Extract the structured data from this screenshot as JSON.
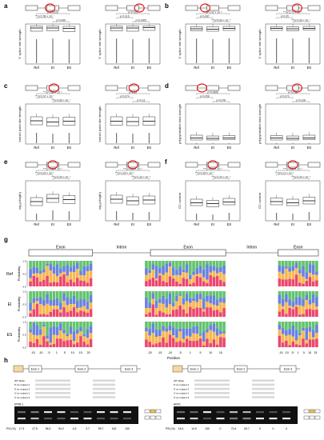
{
  "panel_letters": [
    "a",
    "b",
    "c",
    "d",
    "e",
    "f",
    "g",
    "h"
  ],
  "groups": [
    "Ref",
    "EI",
    "ES"
  ],
  "gene_labels": {
    "exon": "Exon",
    "intron": "Intron"
  },
  "box_panels": [
    {
      "ylabel": "5' splice site strength",
      "pvals": [
        "p=0.0015",
        "***p=2.56 × 10⁻⁴",
        "p=0.499"
      ]
    },
    {
      "ylabel": "5' splice site strength",
      "pvals": [
        "p=0.763",
        "p=0.116",
        "p=0.0005"
      ]
    },
    {
      "ylabel": "3' splice site strength",
      "pvals": [
        "***p=1.02 × 10⁻⁸",
        "p=0.087",
        "***p=5.06 × 10⁻⁵"
      ]
    },
    {
      "ylabel": "3' splice site strength",
      "pvals": [
        "***p=1.71 × 10⁻⁸",
        "p=0.05",
        "***p=1.96 × 10⁻⁴"
      ]
    },
    {
      "ylabel": "branch point site strength",
      "pvals": [
        "***p=7.80 × 10⁻⁸",
        "***p=2.07 × 10⁻⁷",
        "***p=3.08 × 10⁻⁶"
      ]
    },
    {
      "ylabel": "branch point site strength",
      "pvals": [
        "p=0.13",
        "p=0.074",
        "p=0.13"
      ]
    },
    {
      "ylabel": "polypyrimidine tract strength",
      "pvals": [
        "p=0.0085",
        "p=0.058",
        "p=0.078"
      ]
    },
    {
      "ylabel": "polypyrimidine tract strength",
      "pvals": [
        "p=0.018",
        "p=0.073",
        "p=0.106"
      ]
    },
    {
      "ylabel": "log₁₀(length)",
      "pvals": [
        "***p=7.40 × 10⁻⁸",
        "***p=3.02 × 10⁻⁶",
        "***p=2.94 × 10⁻⁶"
      ]
    },
    {
      "ylabel": "log₁₀(length)",
      "pvals": [
        "***p=1.20 × 10⁻⁸",
        "***p=1.00 × 10⁻⁵",
        "***p=1.30 × 10⁻⁵"
      ]
    },
    {
      "ylabel": "GC content",
      "pvals": [
        "***p=4.24 × 10⁻⁸",
        "***p=2.50 × 10⁻⁸",
        "***p=1.04 × 10⁻⁶"
      ]
    },
    {
      "ylabel": "GC content",
      "pvals": [
        "***p=1.60 × 10⁻⁸",
        "***p=2.11 × 10⁻⁸",
        "***p=2.44 × 10⁻⁸"
      ]
    }
  ],
  "logo": {
    "ylabel": "Probability",
    "xlabel": "Position",
    "rows": [
      "Ref",
      "EI",
      "ES"
    ],
    "segments": [
      "Exon",
      "Intron",
      "Exon",
      "Intron",
      "Exon"
    ],
    "ticks": [
      "-15",
      "-10",
      "-5",
      "1",
      "5",
      "10",
      "15",
      "20",
      "-20",
      "-15",
      "-10",
      "-5",
      "1",
      "5",
      "10",
      "15",
      "-15",
      "-10",
      "-5",
      "1",
      "5",
      "10",
      "15"
    ],
    "colors": {
      "A": "#3cb44b",
      "C": "#4363d8",
      "G": "#f5a623",
      "T": "#e6194b"
    }
  },
  "panel_h": {
    "gene_left": [
      "Exon 1",
      "Exon 2",
      "Exon 3"
    ],
    "gene_right": [
      "Exon 1",
      "Exon 2",
      "Exon 3"
    ],
    "seq_rows_left": [
      "WT Allele",
      "5' ss mutant 1",
      "5' ss mutant 2",
      "3' ss mutant 1",
      "3' ss mutant 2"
    ],
    "seq_rows_right": [
      "WT Allele",
      "5' ss mutant 1",
      "5' ss mutant 2",
      "3' ss mutant 1",
      "3' ss mutant 2"
    ],
    "lane_left_label": "MYBL1",
    "lane_right_label": "AKR1",
    "psi_label": "PSI (%)",
    "psi_left": [
      "17.3",
      "27.8",
      "96.3",
      "94.2",
      "4.5",
      "3.7",
      "99.7",
      "100",
      "100"
    ],
    "psi_right": [
      "15.4",
      "14.9",
      "100",
      "0",
      "70.4",
      "63.7",
      "0",
      "0",
      "0"
    ]
  },
  "accent": "#e02020"
}
